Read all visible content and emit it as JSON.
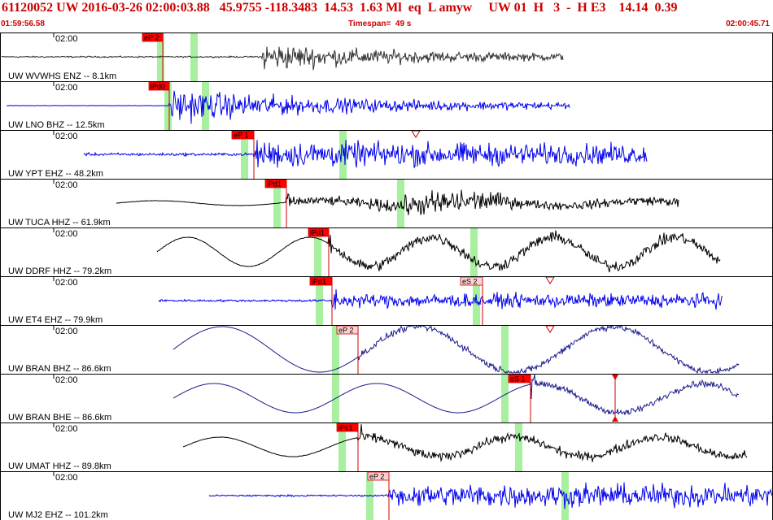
{
  "header": {
    "event_line": "61120052 UW 2016-03-26 02:00:03.88   45.9755 -118.3483  14.53  1.63 Ml  eq  L amyw     UW 01  H   3  -  H E3    14.14  0.39",
    "start_time": "01:59:56.58",
    "timespan": "Timespan=  49 s",
    "end_time": "02:00:45.71"
  },
  "colors": {
    "header_text": "#cc0000",
    "panel_border": "#000000",
    "pick_box_fill": "#ff0000",
    "emergent_pick_fill": "#ffd0d0",
    "pick_line": "#cc0000",
    "green_band": "#a8f0a0",
    "wave_black": "#000000",
    "wave_blue": "#0000ee",
    "wave_navy": "#1a1a8c",
    "wave_darkgray": "#303030"
  },
  "panels": [
    {
      "station": "UW WVWHS ENZ -- 8.1km",
      "time_label": "02:00",
      "picks": [
        {
          "label": "eP 2",
          "style": "solid"
        }
      ]
    },
    {
      "station": "UW LNO BHZ -- 12.5km",
      "time_label": "02:00",
      "picks": [
        {
          "label": "iPd0",
          "style": "solid"
        }
      ]
    },
    {
      "station": "UW YPT EHZ -- 48.2km",
      "time_label": "02:00",
      "picks": [
        {
          "label": "eP 1",
          "style": "solid"
        }
      ]
    },
    {
      "station": "UW TUCA HHZ -- 61.9km",
      "time_label": "02:00",
      "picks": [
        {
          "label": "iPd1",
          "style": "solid"
        }
      ]
    },
    {
      "station": "UW DDRF HHZ -- 79.2km",
      "time_label": "02:00",
      "picks": [
        {
          "label": "iPd1",
          "style": "solid"
        }
      ]
    },
    {
      "station": "UW ET4 EHZ -- 79.9km",
      "time_label": "02:00",
      "picks": [
        {
          "label": "iPd1",
          "style": "solid"
        },
        {
          "label": "eS 2",
          "style": "emergent"
        }
      ]
    },
    {
      "station": "UW BRAN BHZ -- 86.6km",
      "time_label": "02:00",
      "picks": [
        {
          "label": "eP 2",
          "style": "emergent"
        }
      ]
    },
    {
      "station": "UW BRAN BHE -- 86.6km",
      "time_label": "02:00",
      "picks": [
        {
          "label": "eS 1",
          "style": "solid"
        }
      ]
    },
    {
      "station": "UW UMAT HHZ -- 89.8km",
      "time_label": "02:00",
      "picks": [
        {
          "label": "iPc1",
          "style": "solid"
        }
      ]
    },
    {
      "station": "UW MJ2 EHZ -- 101.2km",
      "time_label": "02:00",
      "picks": [
        {
          "label": "eP 2",
          "style": "emergent"
        }
      ]
    }
  ]
}
